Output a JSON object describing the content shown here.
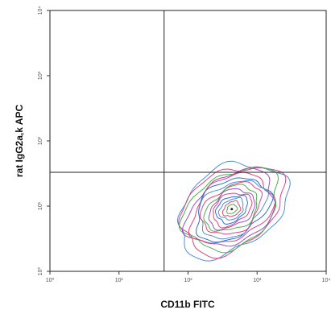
{
  "chart_data": {
    "type": "contour",
    "xlabel": "CD11b FITC",
    "ylabel": "rat IgG2a,k APC",
    "x_scale": "log",
    "y_scale": "log",
    "xlim": [
      1,
      10000
    ],
    "ylim": [
      1,
      10000
    ],
    "x_ticks": [
      {
        "value": 1,
        "label": "10⁰"
      },
      {
        "value": 10,
        "label": "10¹"
      },
      {
        "value": 100,
        "label": "10²"
      },
      {
        "value": 1000,
        "label": "10³"
      },
      {
        "value": 10000,
        "label": "10⁴"
      }
    ],
    "y_ticks": [
      {
        "value": 1,
        "label": "10⁰"
      },
      {
        "value": 10,
        "label": "10¹"
      },
      {
        "value": 100,
        "label": "10²"
      },
      {
        "value": 1000,
        "label": "10³"
      },
      {
        "value": 10000,
        "label": "10⁴"
      }
    ],
    "quadrant_gates": {
      "x": 45,
      "y": 33
    },
    "population": {
      "center_x": 430,
      "center_y": 9,
      "color_levels": [
        "#4f8fd6",
        "#e0457b",
        "#4caf50",
        "#9c4fbf",
        "#e0457b",
        "#2e6fd0"
      ]
    }
  }
}
